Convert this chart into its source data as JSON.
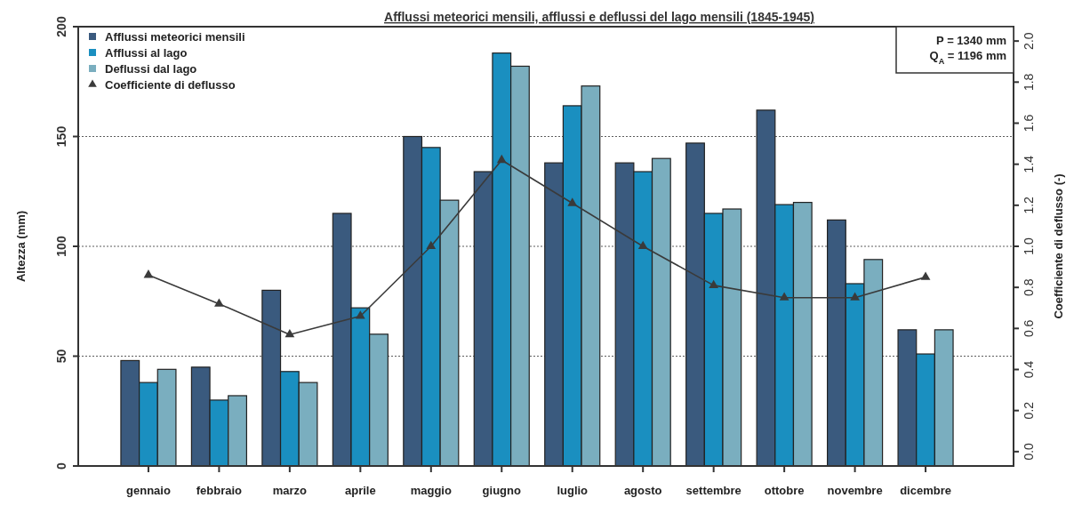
{
  "chart_data": {
    "type": "bar",
    "title": "Afflussi meteorici mensili, afflussi e deflussi del lago mensili  (1845-1945)",
    "ylabel": "Altezza (mm)",
    "y2label": "Coefficiente di deflusso (-)",
    "categories": [
      "gennaio",
      "febbraio",
      "marzo",
      "aprile",
      "maggio",
      "giugno",
      "luglio",
      "agosto",
      "settembre",
      "ottobre",
      "novembre",
      "dicembre"
    ],
    "series": [
      {
        "name": "Afflussi meteorici mensili",
        "color": "#3a5a7e",
        "values": [
          48,
          45,
          80,
          115,
          150,
          134,
          138,
          138,
          147,
          162,
          112,
          62
        ]
      },
      {
        "name": "Afflussi al lago",
        "color": "#1a8fc0",
        "values": [
          38,
          30,
          43,
          72,
          145,
          188,
          164,
          134,
          115,
          119,
          83,
          51
        ]
      },
      {
        "name": "Deflussi dal lago",
        "color": "#7aaebf",
        "values": [
          44,
          32,
          38,
          60,
          121,
          182,
          173,
          140,
          117,
          120,
          94,
          62
        ]
      },
      {
        "name": "Coefficiente di deflusso",
        "type": "line",
        "axis": "y2",
        "color": "#3a3a3a",
        "values": [
          0.86,
          0.72,
          0.57,
          0.66,
          1.0,
          1.42,
          1.21,
          1.0,
          0.81,
          0.75,
          0.75,
          0.85
        ]
      }
    ],
    "ylim": [
      0,
      200
    ],
    "yticks": [
      0,
      50,
      100,
      150,
      200
    ],
    "y2lim": [
      -0.07,
      2.07
    ],
    "y2ticks": [
      {
        "value": 0,
        "label": "0.0"
      },
      {
        "value": 0.2,
        "label": "0.2"
      },
      {
        "value": 0.4,
        "label": "0.4"
      },
      {
        "value": 0.6,
        "label": "0.6"
      },
      {
        "value": 0.8,
        "label": "0.8"
      },
      {
        "value": 1,
        "label": "1.0"
      },
      {
        "value": 1.2,
        "label": "1.2"
      },
      {
        "value": 1.4,
        "label": "1.4"
      },
      {
        "value": 1.6,
        "label": "1.6"
      },
      {
        "value": 1.8,
        "label": "1.8"
      },
      {
        "value": 2,
        "label": "2.0"
      }
    ],
    "grid": "y",
    "legend": "top left",
    "marker": "triangle",
    "line_style": "solid",
    "annotations": [
      "P = 1340  mm",
      "Q$_{A}$ = 1196 mm"
    ]
  }
}
